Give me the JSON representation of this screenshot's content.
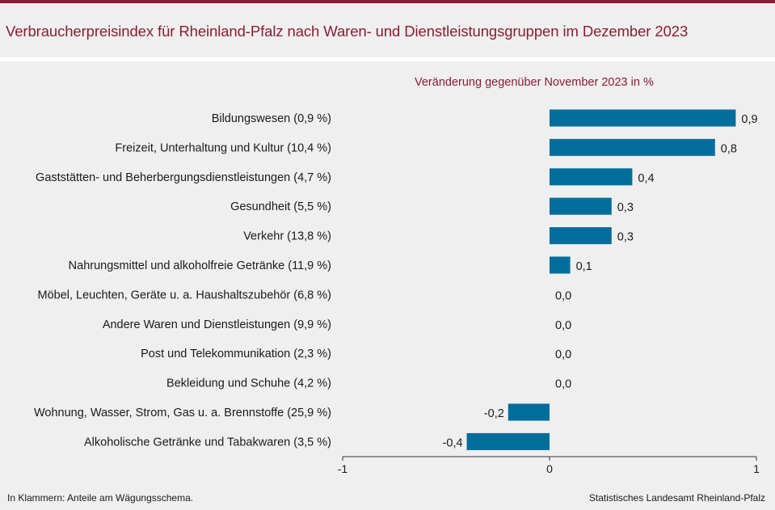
{
  "header": {
    "title": "Verbraucherpreisindex für Rheinland-Pfalz nach Waren- und Dienstleistungsgruppen im Dezember 2023"
  },
  "footer": {
    "note": "In Klammern: Anteile am Wägungsschema.",
    "source": "Statistisches Landesamt Rheinland-Pfalz"
  },
  "colors": {
    "accent": "#8b1c34",
    "bar": "#006e9c"
  },
  "chart_data": {
    "type": "bar",
    "orientation": "horizontal",
    "subtitle": "Veränderung  gegenüber  November 2023 in %",
    "categories": [
      "Bildungswesen (0,9 %)",
      "Freizeit, Unterhaltung und Kultur (10,4 %)",
      "Gaststätten- und Beherbergungsdienstleistungen (4,7 %)",
      "Gesundheit (5,5 %)",
      "Verkehr (13,8 %)",
      "Nahrungsmittel und alkoholfreie Getränke (11,9 %)",
      "Möbel, Leuchten, Geräte u. a. Haushaltszubehör (6,8 %)",
      "Andere Waren und Dienstleistungen (9,9 %)",
      "Post und Telekommunikation (2,3 %)",
      "Bekleidung und Schuhe (4,2 %)",
      "Wohnung, Wasser, Strom, Gas u. a. Brennstoffe (25,9 %)",
      "Alkoholische Getränke und Tabakwaren (3,5 %)"
    ],
    "values": [
      0.9,
      0.8,
      0.4,
      0.3,
      0.3,
      0.1,
      0.0,
      0.0,
      0.0,
      0.0,
      -0.2,
      -0.4
    ],
    "value_labels": [
      "0,9",
      "0,8",
      "0,4",
      "0,3",
      "0,3",
      "0,1",
      "0,0",
      "0,0",
      "0,0",
      "0,0",
      "-0,2",
      "-0,4"
    ],
    "xlim": [
      -1,
      1
    ],
    "xticks": [
      -1,
      0,
      1
    ],
    "xtick_labels": [
      "-1",
      "0",
      "1"
    ],
    "grid": false,
    "legend": "none"
  }
}
